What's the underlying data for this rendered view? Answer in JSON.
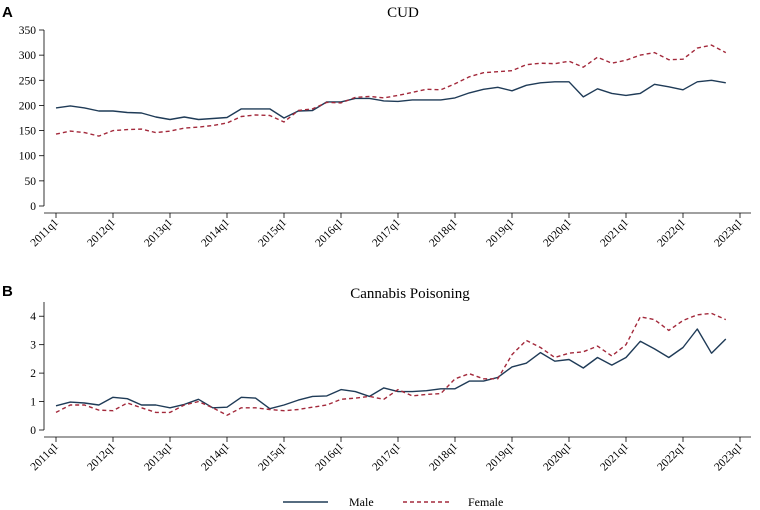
{
  "legend": {
    "placement": "bottom-center",
    "entries": [
      {
        "name": "Male",
        "color": "#1f3b57",
        "style": "solid"
      },
      {
        "name": "Female",
        "color": "#a3293b",
        "style": "dashed"
      }
    ]
  },
  "chart_data": [
    {
      "panel": "A",
      "type": "line",
      "title": "CUD",
      "xlabel": "",
      "ylabel": "",
      "grid": false,
      "x_ticks": [
        "2011q1",
        "2012q1",
        "2013q1",
        "2014q1",
        "2015q1",
        "2016q1",
        "2017q1",
        "2018q1",
        "2019q1",
        "2020q1",
        "2021q1",
        "2022q1",
        "2023q1"
      ],
      "y_ticks": [
        "0",
        "50",
        "100",
        "150",
        "200",
        "250",
        "300",
        "350"
      ],
      "ylim": [
        0,
        350
      ],
      "xlim": [
        "2011q1",
        "2023q1"
      ],
      "x": [
        "2011q1",
        "2011q2",
        "2011q3",
        "2011q4",
        "2012q1",
        "2012q2",
        "2012q3",
        "2012q4",
        "2013q1",
        "2013q2",
        "2013q3",
        "2013q4",
        "2014q1",
        "2014q2",
        "2014q3",
        "2014q4",
        "2015q1",
        "2015q2",
        "2015q3",
        "2015q4",
        "2016q1",
        "2016q2",
        "2016q3",
        "2016q4",
        "2017q1",
        "2017q2",
        "2017q3",
        "2017q4",
        "2018q1",
        "2018q2",
        "2018q3",
        "2018q4",
        "2019q1",
        "2019q2",
        "2019q3",
        "2019q4",
        "2020q1",
        "2020q2",
        "2020q3",
        "2020q4",
        "2021q1",
        "2021q2",
        "2021q3",
        "2021q4",
        "2022q1",
        "2022q2",
        "2022q3",
        "2022q4"
      ],
      "series": [
        {
          "name": "Male",
          "values": [
            195,
            199,
            195,
            189,
            189,
            186,
            185,
            177,
            172,
            177,
            172,
            174,
            176,
            193,
            193,
            193,
            175,
            189,
            190,
            207,
            207,
            214,
            214,
            209,
            208,
            211,
            211,
            211,
            215,
            225,
            232,
            236,
            229,
            240,
            245,
            247,
            247,
            217,
            233,
            224,
            220,
            224,
            242,
            237,
            231,
            247,
            250,
            245
          ]
        },
        {
          "name": "Female",
          "values": [
            143,
            149,
            146,
            139,
            150,
            152,
            153,
            146,
            149,
            155,
            157,
            160,
            165,
            178,
            181,
            180,
            167,
            190,
            193,
            206,
            205,
            216,
            218,
            215,
            220,
            226,
            232,
            231,
            243,
            257,
            265,
            267,
            269,
            281,
            284,
            283,
            288,
            276,
            296,
            284,
            290,
            300,
            305,
            291,
            292,
            314,
            320,
            305
          ]
        }
      ]
    },
    {
      "panel": "B",
      "type": "line",
      "title": "Cannabis Poisoning",
      "xlabel": "",
      "ylabel": "",
      "grid": false,
      "x_ticks": [
        "2011q1",
        "2012q1",
        "2013q1",
        "2014q1",
        "2015q1",
        "2016q1",
        "2017q1",
        "2018q1",
        "2019q1",
        "2020q1",
        "2021q1",
        "2022q1",
        "2023q1"
      ],
      "y_ticks": [
        "0",
        "1",
        "2",
        "3",
        "4"
      ],
      "ylim": [
        0,
        4.5
      ],
      "xlim": [
        "2011q1",
        "2023q1"
      ],
      "x": [
        "2011q1",
        "2011q2",
        "2011q3",
        "2011q4",
        "2012q1",
        "2012q2",
        "2012q3",
        "2012q4",
        "2013q1",
        "2013q2",
        "2013q3",
        "2013q4",
        "2014q1",
        "2014q2",
        "2014q3",
        "2014q4",
        "2015q1",
        "2015q2",
        "2015q3",
        "2015q4",
        "2016q1",
        "2016q2",
        "2016q3",
        "2016q4",
        "2017q1",
        "2017q2",
        "2017q3",
        "2017q4",
        "2018q1",
        "2018q2",
        "2018q3",
        "2018q4",
        "2019q1",
        "2019q2",
        "2019q3",
        "2019q4",
        "2020q1",
        "2020q2",
        "2020q3",
        "2020q4",
        "2021q1",
        "2021q2",
        "2021q3",
        "2021q4",
        "2022q1",
        "2022q2",
        "2022q3",
        "2022q4"
      ],
      "series": [
        {
          "name": "Male",
          "values": [
            0.85,
            0.98,
            0.95,
            0.88,
            1.15,
            1.1,
            0.88,
            0.88,
            0.78,
            0.9,
            1.08,
            0.78,
            0.8,
            1.15,
            1.12,
            0.75,
            0.88,
            1.05,
            1.18,
            1.2,
            1.42,
            1.35,
            1.18,
            1.48,
            1.35,
            1.35,
            1.38,
            1.45,
            1.45,
            1.72,
            1.72,
            1.85,
            2.22,
            2.35,
            2.72,
            2.42,
            2.48,
            2.18,
            2.55,
            2.28,
            2.55,
            3.12,
            2.85,
            2.55,
            2.9,
            3.55,
            2.7,
            3.2
          ]
        },
        {
          "name": "Female",
          "values": [
            0.62,
            0.88,
            0.88,
            0.7,
            0.68,
            0.95,
            0.78,
            0.62,
            0.62,
            0.88,
            1.0,
            0.78,
            0.52,
            0.78,
            0.78,
            0.72,
            0.68,
            0.72,
            0.8,
            0.88,
            1.08,
            1.12,
            1.18,
            1.08,
            1.42,
            1.2,
            1.25,
            1.28,
            1.8,
            1.98,
            1.8,
            1.8,
            2.65,
            3.15,
            2.9,
            2.55,
            2.7,
            2.75,
            2.95,
            2.6,
            3.0,
            3.98,
            3.88,
            3.5,
            3.85,
            4.05,
            4.1,
            3.88
          ]
        }
      ]
    }
  ]
}
